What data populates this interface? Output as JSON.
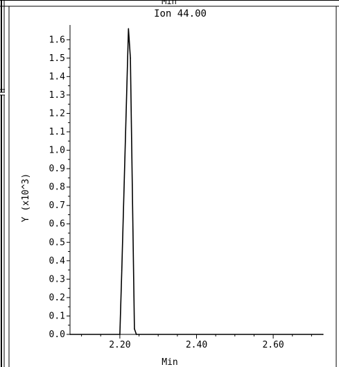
{
  "window": {
    "top_title_fragment": "Min"
  },
  "chart_data": {
    "type": "line",
    "title": "Ion 44.00",
    "xlabel": "Min",
    "ylabel": "Y (x10^3)",
    "xlim": [
      2.07,
      2.73
    ],
    "ylim": [
      0.0,
      1.65
    ],
    "xticks": [
      {
        "value": 2.2,
        "label": "2.20"
      },
      {
        "value": 2.4,
        "label": "2.40"
      },
      {
        "value": 2.6,
        "label": "2.60"
      }
    ],
    "yticks": [
      {
        "value": 0.0,
        "label": "0.0"
      },
      {
        "value": 0.1,
        "label": "0.1"
      },
      {
        "value": 0.2,
        "label": "0.2"
      },
      {
        "value": 0.3,
        "label": "0.3"
      },
      {
        "value": 0.4,
        "label": "0.4"
      },
      {
        "value": 0.5,
        "label": "0.5"
      },
      {
        "value": 0.6,
        "label": "0.6"
      },
      {
        "value": 0.7,
        "label": "0.7"
      },
      {
        "value": 0.8,
        "label": "0.8"
      },
      {
        "value": 0.9,
        "label": "0.9"
      },
      {
        "value": 1.0,
        "label": "1.0"
      },
      {
        "value": 1.1,
        "label": "1.1"
      },
      {
        "value": 1.2,
        "label": "1.2"
      },
      {
        "value": 1.3,
        "label": "1.3"
      },
      {
        "value": 1.4,
        "label": "1.4"
      },
      {
        "value": 1.5,
        "label": "1.5"
      },
      {
        "value": 1.6,
        "label": "1.6"
      }
    ],
    "series": [
      {
        "x": [
          2.07,
          2.2,
          2.205,
          2.2225,
          2.2275,
          2.238,
          2.243,
          2.73
        ],
        "y": [
          0.0,
          0.0,
          0.35,
          1.66,
          1.5,
          0.03,
          0.0,
          0.0
        ]
      }
    ],
    "colors": {
      "line": "#000000",
      "background": "#ffffff"
    }
  }
}
